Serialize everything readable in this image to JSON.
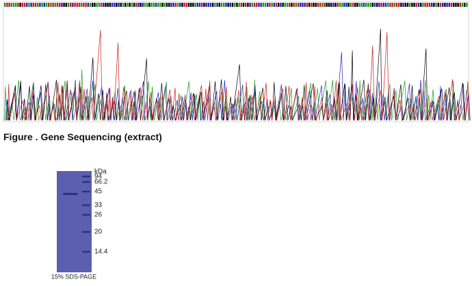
{
  "figure_caption": "Figure . Gene Sequencing (extract)",
  "gel": {
    "unit": "kDa",
    "markers": [
      "94",
      "66.2",
      "45",
      "33",
      "26",
      "20",
      "14.4"
    ],
    "caption": "15% SDS-PAGE"
  }
}
